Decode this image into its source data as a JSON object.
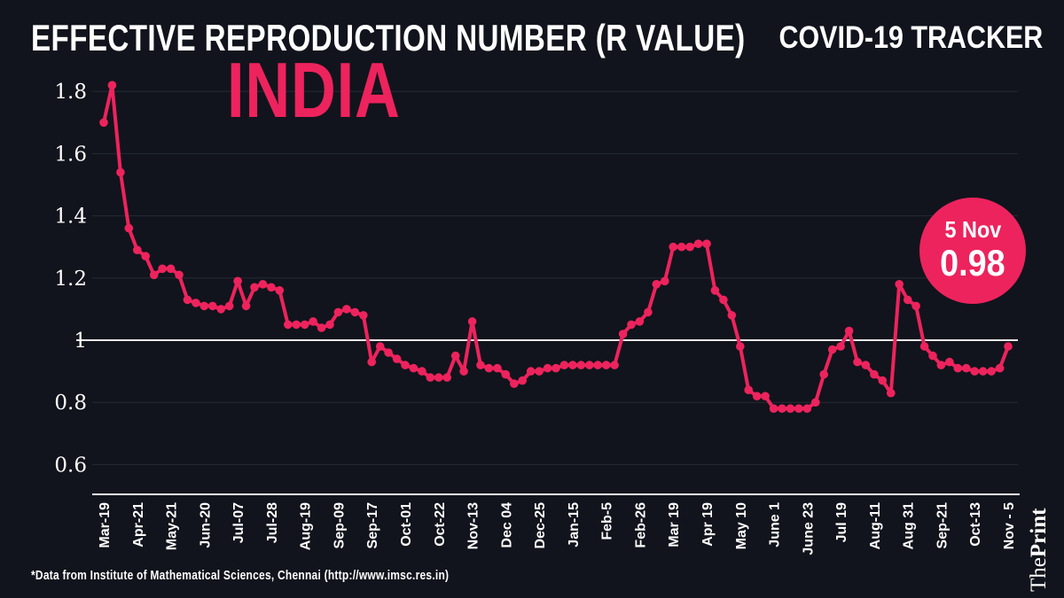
{
  "page": {
    "background": "#11141c",
    "accent_pink": "#ed235d",
    "text_color": "#ffffff"
  },
  "header": {
    "title": "EFFECTIVE REPRODUCTION NUMBER (R VALUE)",
    "tracker_label": "COVID-19 TRACKER",
    "country": "INDIA"
  },
  "badge": {
    "date": "5 Nov",
    "value": "0.98"
  },
  "footer": {
    "source_note": "*Data from Institute of Mathematical Sciences, Chennai (http://www.imsc.res.in)"
  },
  "logo": {
    "part1": "The",
    "part2": "Print"
  },
  "chart_data": {
    "type": "line",
    "title": "EFFECTIVE REPRODUCTION NUMBER (R VALUE) - INDIA",
    "series_name": "R value",
    "line_color": "#ed235d",
    "grid": "horizontal-faint",
    "legend_position": "none",
    "reference_line": 1,
    "ylim": [
      0.5,
      1.9
    ],
    "y_ticks": [
      "1.8",
      "1.6",
      "1.4",
      "1.2",
      "1",
      "0.8",
      "0.6"
    ],
    "ticks_every_n_points": 4,
    "x_tick_labels": [
      "Mar-19",
      "Apr-21",
      "May-21",
      "Jun-20",
      "Jul-07",
      "Jul-28",
      "Aug-19",
      "Sep-09",
      "Sep-17",
      "Oct-01",
      "Oct-22",
      "Nov-13",
      "Dec 04",
      "Dec-25",
      "Jan-15",
      "Feb-5",
      "Feb-26",
      "Mar 19",
      "Apr 19",
      "May 10",
      "June 1",
      "June 23",
      "Jul 19",
      "Aug-11",
      "Aug 31",
      "Sep-21",
      "Oct-13",
      "Nov - 5"
    ],
    "values": [
      1.7,
      1.82,
      1.54,
      1.36,
      1.29,
      1.27,
      1.21,
      1.23,
      1.23,
      1.21,
      1.13,
      1.12,
      1.11,
      1.11,
      1.1,
      1.11,
      1.19,
      1.11,
      1.17,
      1.18,
      1.17,
      1.16,
      1.05,
      1.05,
      1.05,
      1.06,
      1.04,
      1.05,
      1.09,
      1.1,
      1.09,
      1.08,
      0.93,
      0.98,
      0.96,
      0.94,
      0.92,
      0.91,
      0.9,
      0.88,
      0.88,
      0.88,
      0.95,
      0.9,
      1.06,
      0.92,
      0.91,
      0.91,
      0.89,
      0.86,
      0.87,
      0.9,
      0.9,
      0.91,
      0.91,
      0.92,
      0.92,
      0.92,
      0.92,
      0.92,
      0.92,
      0.92,
      1.02,
      1.05,
      1.06,
      1.09,
      1.18,
      1.19,
      1.3,
      1.3,
      1.3,
      1.31,
      1.31,
      1.16,
      1.13,
      1.08,
      0.98,
      0.84,
      0.82,
      0.82,
      0.78,
      0.78,
      0.78,
      0.78,
      0.78,
      0.8,
      0.89,
      0.97,
      0.98,
      1.03,
      0.93,
      0.92,
      0.89,
      0.87,
      0.83,
      1.18,
      1.13,
      1.11,
      0.98,
      0.95,
      0.92,
      0.93,
      0.91,
      0.91,
      0.9,
      0.9,
      0.9,
      0.91,
      0.98
    ],
    "last_point": {
      "label": "Nov - 5",
      "value": 0.98
    }
  }
}
